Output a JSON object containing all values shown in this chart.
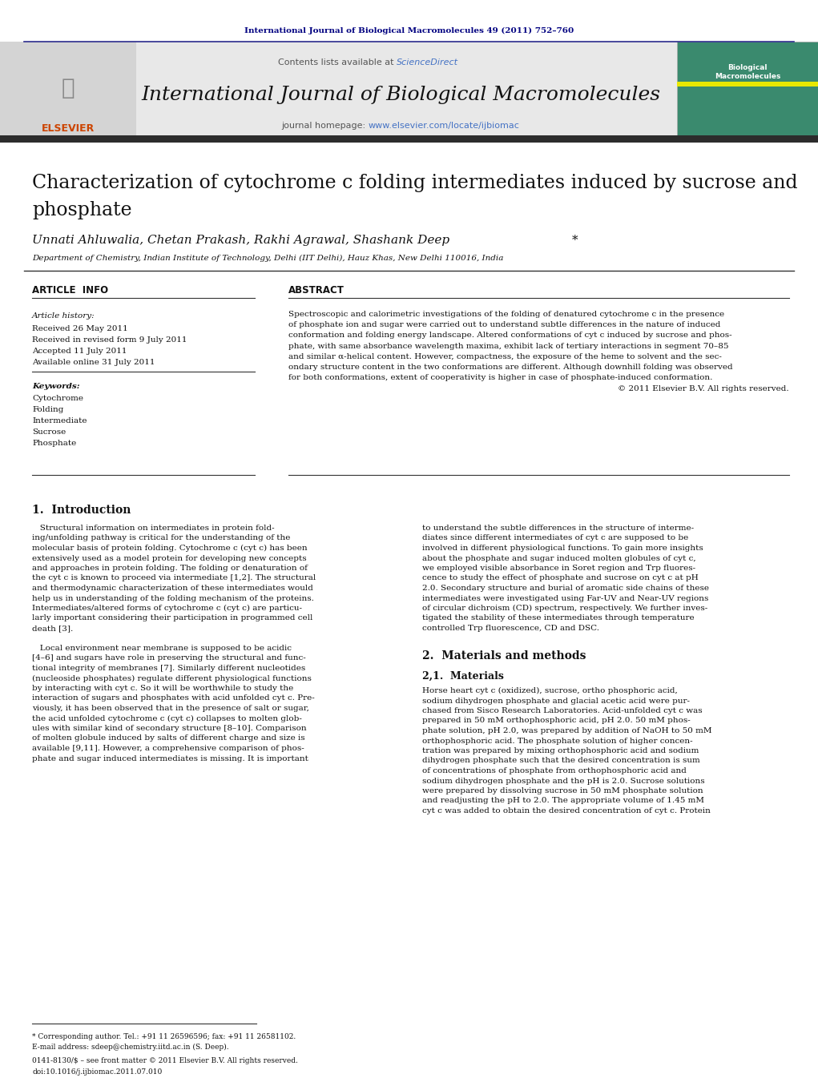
{
  "page_bg": "#ffffff",
  "top_journal_ref": "International Journal of Biological Macromolecules 49 (2011) 752–760",
  "top_ref_color": "#000080",
  "header_bg": "#e8e8e8",
  "header_sciencedirect_color": "#4472c4",
  "journal_name": "International Journal of Biological Macromolecules",
  "journal_homepage_color": "#4472c4",
  "divider_color": "#2b2b8c",
  "dark_bar_color": "#2c2c2c",
  "article_info_header": "ARTICLE  INFO",
  "abstract_header": "ABSTRACT",
  "article_history_label": "Article history:",
  "received": "Received 26 May 2011",
  "received_revised": "Received in revised form 9 July 2011",
  "accepted": "Accepted 11 July 2011",
  "available_online": "Available online 31 July 2011",
  "keywords_label": "Keywords:",
  "keywords": [
    "Cytochrome",
    "Folding",
    "Intermediate",
    "Sucrose",
    "Phosphate"
  ],
  "abstract_lines": [
    "Spectroscopic and calorimetric investigations of the folding of denatured cytochrome c in the presence",
    "of phosphate ion and sugar were carried out to understand subtle differences in the nature of induced",
    "conformation and folding energy landscape. Altered conformations of cyt c induced by sucrose and phos-",
    "phate, with same absorbance wavelength maxima, exhibit lack of tertiary interactions in segment 70–85",
    "and similar α-helical content. However, compactness, the exposure of the heme to solvent and the sec-",
    "ondary structure content in the two conformations are different. Although downhill folding was observed",
    "for both conformations, extent of cooperativity is higher in case of phosphate-induced conformation."
  ],
  "copyright_line": "© 2011 Elsevier B.V. All rights reserved.",
  "section1_title": "1.  Introduction",
  "intro_left_lines": [
    "   Structural information on intermediates in protein fold-",
    "ing/unfolding pathway is critical for the understanding of the",
    "molecular basis of protein folding. Cytochrome c (cyt c) has been",
    "extensively used as a model protein for developing new concepts",
    "and approaches in protein folding. The folding or denaturation of",
    "the cyt c is known to proceed via intermediate [1,2]. The structural",
    "and thermodynamic characterization of these intermediates would",
    "help us in understanding of the folding mechanism of the proteins.",
    "Intermediates/altered forms of cytochrome c (cyt c) are particu-",
    "larly important considering their participation in programmed cell",
    "death [3].",
    "",
    "   Local environment near membrane is supposed to be acidic",
    "[4–6] and sugars have role in preserving the structural and func-",
    "tional integrity of membranes [7]. Similarly different nucleotides",
    "(nucleoside phosphates) regulate different physiological functions",
    "by interacting with cyt c. So it will be worthwhile to study the",
    "interaction of sugars and phosphates with acid unfolded cyt c. Pre-",
    "viously, it has been observed that in the presence of salt or sugar,",
    "the acid unfolded cytochrome c (cyt c) collapses to molten glob-",
    "ules with similar kind of secondary structure [8–10]. Comparison",
    "of molten globule induced by salts of different charge and size is",
    "available [9,11]. However, a comprehensive comparison of phos-",
    "phate and sugar induced intermediates is missing. It is important"
  ],
  "intro_right_lines": [
    "to understand the subtle differences in the structure of interme-",
    "diates since different intermediates of cyt c are supposed to be",
    "involved in different physiological functions. To gain more insights",
    "about the phosphate and sugar induced molten globules of cyt c,",
    "we employed visible absorbance in Soret region and Trp fluores-",
    "cence to study the effect of phosphate and sucrose on cyt c at pH",
    "2.0. Secondary structure and burial of aromatic side chains of these",
    "intermediates were investigated using Far-UV and Near-UV regions",
    "of circular dichroism (CD) spectrum, respectively. We further inves-",
    "tigated the stability of these intermediates through temperature",
    "controlled Trp fluorescence, CD and DSC."
  ],
  "section2_title": "2.  Materials and methods",
  "section21_title": "2,1.  Materials",
  "materials_lines": [
    "Horse heart cyt c (oxidized), sucrose, ortho phosphoric acid,",
    "sodium dihydrogen phosphate and glacial acetic acid were pur-",
    "chased from Sisco Research Laboratories. Acid-unfolded cyt c was",
    "prepared in 50 mM orthophosphoric acid, pH 2.0. 50 mM phos-",
    "phate solution, pH 2.0, was prepared by addition of NaOH to 50 mM",
    "orthophosphoric acid. The phosphate solution of higher concen-",
    "tration was prepared by mixing orthophosphoric acid and sodium",
    "dihydrogen phosphate such that the desired concentration is sum",
    "of concentrations of phosphate from orthophosphoric acid and",
    "sodium dihydrogen phosphate and the pH is 2.0. Sucrose solutions",
    "were prepared by dissolving sucrose in 50 mM phosphate solution",
    "and readjusting the pH to 2.0. The appropriate volume of 1.45 mM",
    "cyt c was added to obtain the desired concentration of cyt c. Protein"
  ],
  "footnote_star": "* Corresponding author. Tel.: +91 11 26596596; fax: +91 11 26581102.",
  "footnote_email": "E-mail address: sdeep@chemistry.iitd.ac.in (S. Deep).",
  "footer_issn": "0141-8130/$ – see front matter © 2011 Elsevier B.V. All rights reserved.",
  "footer_doi": "doi:10.1016/j.ijbiomac.2011.07.010"
}
